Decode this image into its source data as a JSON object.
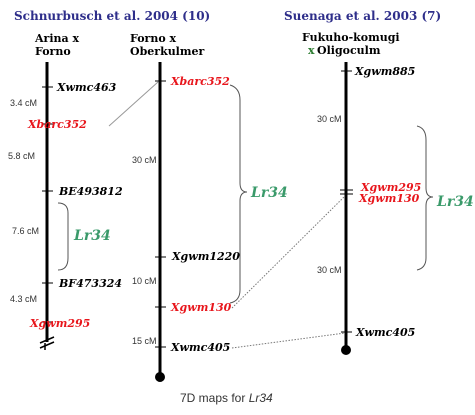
{
  "sources": {
    "left": "Schnurbusch et al. 2004 (10)",
    "right": "Suenaga et al. 2003 (7)"
  },
  "maps": {
    "map1": {
      "cross_line1": "Arina x",
      "cross_line2": "Forno",
      "markers": [
        "Xwmc463",
        "Xbarc352",
        "BE493812",
        "BF473324",
        "Xgwm295"
      ],
      "distances": [
        "3.4 cM",
        "5.8 cM",
        "7.6 cM",
        "4.3 cM"
      ],
      "gene": "Lr34"
    },
    "map2": {
      "cross_line1": "Forno x",
      "cross_line2": "Oberkulmer",
      "markers": [
        "Xbarc352",
        "Xgwm1220",
        "Xgwm130",
        "Xwmc405"
      ],
      "distances": [
        "30 cM",
        "10 cM",
        "15 cM"
      ],
      "gene": "Lr34"
    },
    "map3": {
      "cross_line1": "Fukuho-komugi",
      "cross_x": "x",
      "cross_line2": "Oligoculm",
      "markers": [
        "Xgwm885",
        "Xgwm295",
        "Xgwm130",
        "Xwmc405"
      ],
      "distances": [
        "30 cM",
        "30 cM"
      ],
      "gene": "Lr34"
    }
  },
  "caption": {
    "text": "7D maps for ",
    "gene": "Lr34"
  },
  "colors": {
    "source_text": "#2e2e8a",
    "marker_highlight": "#e8161c",
    "gene_label": "#3a9a6a"
  }
}
